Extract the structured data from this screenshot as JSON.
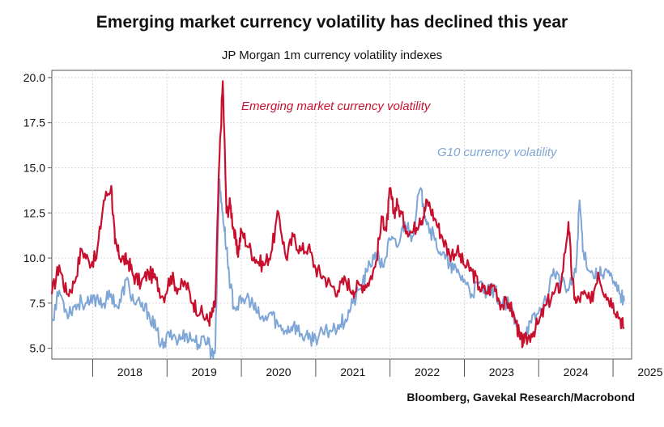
{
  "colors": {
    "em": "#c8102e",
    "g10": "#7ea6d6",
    "grid": "#d9d9d9",
    "axis": "#555555"
  },
  "chart_data": {
    "type": "line",
    "title": "Emerging market currency volatility has declined this year",
    "subtitle": "JP Morgan 1m currency volatility indexes",
    "source": "Bloomberg, Gavekal Research/Macrobond",
    "xlabel": "",
    "ylabel": "",
    "xlim": [
      2017.45,
      2025.25
    ],
    "ylim": [
      4.4,
      20.4
    ],
    "yticks": [
      "5.0",
      "7.5",
      "10.0",
      "12.5",
      "15.0",
      "17.5",
      "20.0"
    ],
    "xticks": [
      "2018",
      "2019",
      "2020",
      "2021",
      "2022",
      "2023",
      "2024",
      "2025"
    ],
    "grid": true,
    "series": [
      {
        "name": "Emerging market currency volatility",
        "x": [
          2017.45,
          2017.55,
          2017.65,
          2017.75,
          2017.85,
          2017.95,
          2018.05,
          2018.15,
          2018.25,
          2018.3,
          2018.35,
          2018.42,
          2018.48,
          2018.55,
          2018.65,
          2018.75,
          2018.85,
          2018.95,
          2019.05,
          2019.15,
          2019.25,
          2019.35,
          2019.45,
          2019.55,
          2019.6,
          2019.65,
          2019.7,
          2019.75,
          2019.8,
          2019.85,
          2019.9,
          2019.95,
          2020.0,
          2020.1,
          2020.2,
          2020.3,
          2020.4,
          2020.5,
          2020.6,
          2020.7,
          2020.8,
          2020.9,
          2021.0,
          2021.1,
          2021.2,
          2021.3,
          2021.4,
          2021.5,
          2021.6,
          2021.7,
          2021.8,
          2021.9,
          2021.95,
          2022.0,
          2022.05,
          2022.1,
          2022.2,
          2022.3,
          2022.4,
          2022.45,
          2022.5,
          2022.6,
          2022.7,
          2022.8,
          2022.9,
          2023.0,
          2023.1,
          2023.2,
          2023.3,
          2023.4,
          2023.5,
          2023.6,
          2023.7,
          2023.75,
          2023.8,
          2023.9,
          2024.0,
          2024.1,
          2024.2,
          2024.3,
          2024.4,
          2024.45,
          2024.5,
          2024.6,
          2024.7,
          2024.8,
          2024.9,
          2025.0,
          2025.1,
          2025.15
        ],
        "values": [
          8.0,
          9.6,
          8.0,
          8.6,
          10.5,
          9.8,
          10.0,
          13.2,
          14.0,
          10.8,
          10.2,
          9.9,
          9.8,
          9.0,
          8.6,
          9.2,
          8.8,
          7.8,
          9.0,
          8.3,
          8.6,
          7.5,
          7.0,
          6.5,
          6.8,
          7.5,
          15.0,
          19.8,
          12.5,
          13.0,
          11.5,
          10.2,
          11.5,
          10.6,
          9.9,
          9.6,
          10.3,
          12.5,
          10.0,
          11.2,
          10.4,
          10.6,
          9.4,
          9.0,
          8.5,
          8.2,
          8.8,
          8.2,
          8.5,
          8.6,
          9.5,
          12.3,
          11.5,
          13.8,
          12.5,
          13.0,
          11.8,
          11.4,
          12.2,
          12.3,
          13.2,
          12.2,
          11.2,
          10.2,
          10.4,
          9.6,
          9.3,
          8.4,
          8.1,
          8.5,
          7.4,
          7.5,
          6.4,
          5.5,
          5.3,
          5.8,
          6.4,
          7.4,
          8.0,
          8.5,
          12.0,
          8.8,
          7.5,
          8.0,
          7.5,
          9.2,
          8.0,
          7.5,
          6.6,
          6.1
        ]
      },
      {
        "name": "G10 currency volatility",
        "x": [
          2017.45,
          2017.55,
          2017.65,
          2017.75,
          2017.85,
          2017.95,
          2018.05,
          2018.15,
          2018.25,
          2018.35,
          2018.45,
          2018.55,
          2018.65,
          2018.75,
          2018.85,
          2018.95,
          2019.05,
          2019.15,
          2019.25,
          2019.35,
          2019.45,
          2019.55,
          2019.6,
          2019.65,
          2019.7,
          2019.75,
          2019.8,
          2019.85,
          2019.9,
          2020.0,
          2020.1,
          2020.2,
          2020.3,
          2020.4,
          2020.5,
          2020.6,
          2020.7,
          2020.8,
          2020.9,
          2021.0,
          2021.1,
          2021.2,
          2021.3,
          2021.4,
          2021.5,
          2021.6,
          2021.7,
          2021.8,
          2021.9,
          2022.0,
          2022.1,
          2022.2,
          2022.3,
          2022.4,
          2022.45,
          2022.5,
          2022.6,
          2022.7,
          2022.8,
          2022.9,
          2023.0,
          2023.1,
          2023.2,
          2023.3,
          2023.4,
          2023.5,
          2023.6,
          2023.7,
          2023.8,
          2023.9,
          2024.0,
          2024.1,
          2024.2,
          2024.3,
          2024.4,
          2024.5,
          2024.55,
          2024.6,
          2024.7,
          2024.8,
          2024.9,
          2025.0,
          2025.1,
          2025.15
        ],
        "values": [
          6.5,
          8.2,
          7.0,
          7.3,
          7.6,
          7.4,
          7.8,
          7.5,
          8.0,
          7.2,
          8.8,
          7.6,
          7.3,
          7.0,
          6.0,
          5.0,
          6.0,
          5.4,
          5.8,
          5.5,
          5.2,
          5.6,
          4.6,
          5.0,
          14.2,
          12.5,
          10.5,
          8.5,
          7.3,
          7.5,
          7.8,
          7.0,
          6.5,
          7.0,
          6.2,
          6.0,
          6.3,
          5.8,
          5.5,
          5.6,
          5.8,
          6.0,
          6.3,
          6.6,
          7.5,
          8.3,
          9.3,
          10.3,
          9.5,
          11.0,
          10.6,
          12.0,
          11.2,
          13.8,
          13.0,
          12.0,
          11.0,
          10.2,
          9.6,
          9.2,
          8.8,
          8.0,
          8.6,
          8.0,
          8.3,
          7.4,
          7.4,
          6.2,
          5.8,
          6.4,
          7.0,
          7.6,
          9.4,
          8.6,
          8.2,
          9.2,
          13.2,
          10.4,
          9.2,
          9.0,
          9.4,
          8.6,
          8.0,
          7.6
        ]
      }
    ],
    "annotations": [
      {
        "text": "Emerging market currency volatility",
        "series": 0
      },
      {
        "text": "G10 currency volatility",
        "series": 1
      }
    ]
  }
}
